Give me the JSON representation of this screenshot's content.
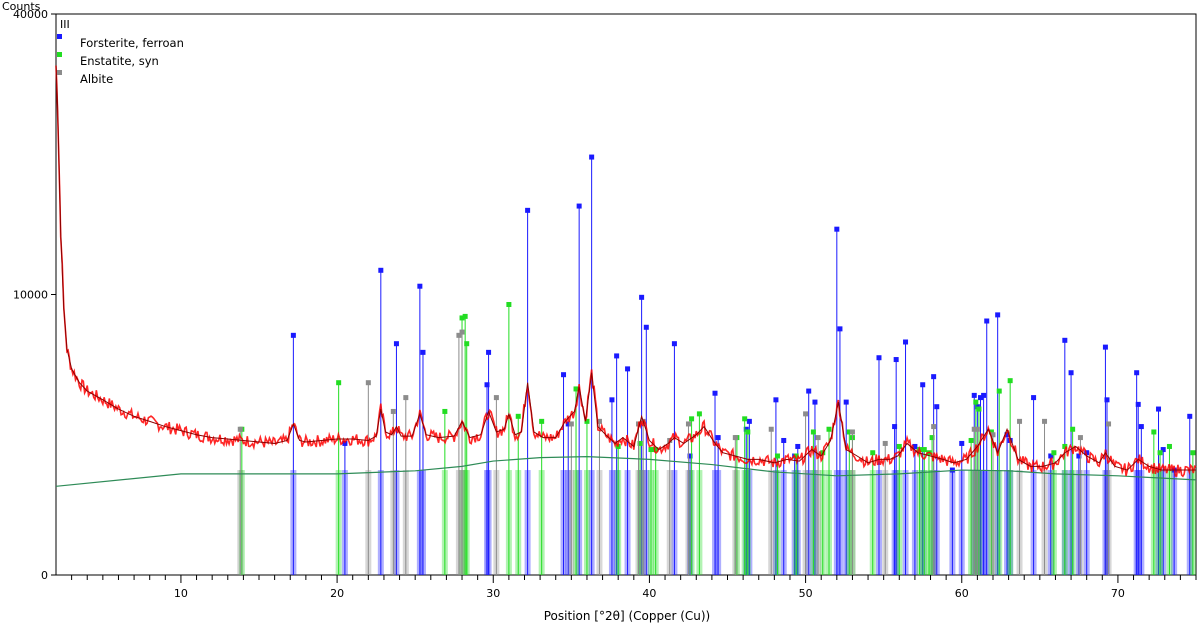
{
  "chart_data": {
    "type": "line",
    "ylabel": "Counts",
    "xlabel": "Position [°2θ] (Copper (Cu))",
    "xlim": [
      2,
      75
    ],
    "ylim": [
      0,
      40000
    ],
    "y_scale": "sqrt",
    "y_ticks": [
      0,
      10000,
      40000
    ],
    "y_tick_labels": [
      "0",
      "10000",
      "40000"
    ],
    "x_ticks": [
      10,
      20,
      30,
      40,
      50,
      60,
      70
    ],
    "grid": false,
    "legend_position": "top-left",
    "legend_marker": "III",
    "legend": [
      {
        "name": "Forsterite, ferroan",
        "color": "#1a1aff"
      },
      {
        "name": "Enstatite, syn",
        "color": "#22dd22"
      },
      {
        "name": "Albite",
        "color": "#8c8c8c"
      }
    ],
    "observed_color": "#ff0000",
    "fit_color": "#8b0000",
    "background_color": "#2e8b57",
    "background": {
      "x": [
        2,
        10,
        20,
        25,
        28,
        30,
        33,
        36,
        40,
        44,
        48,
        52,
        56,
        60,
        63,
        66,
        70,
        75
      ],
      "y": [
        1000,
        1300,
        1300,
        1380,
        1500,
        1650,
        1750,
        1780,
        1700,
        1550,
        1350,
        1250,
        1300,
        1400,
        1380,
        1300,
        1250,
        1150
      ]
    },
    "observed": {
      "x": [
        2.0,
        2.1,
        2.2,
        2.3,
        2.5,
        2.7,
        3.0,
        3.5,
        4,
        5,
        6,
        7,
        8,
        9,
        10,
        11,
        12,
        13,
        14,
        15,
        16,
        16.8,
        17.2,
        17.6,
        18,
        19,
        20,
        21,
        22,
        22.5,
        22.8,
        23.1,
        23.5,
        23.8,
        24.1,
        24.8,
        25.3,
        25.7,
        26.5,
        27.5,
        28.0,
        28.5,
        29.2,
        29.7,
        30.2,
        30.7,
        31.0,
        31.4,
        31.8,
        32.2,
        32.6,
        33.2,
        34,
        34.6,
        35.2,
        35.5,
        35.9,
        36.3,
        36.7,
        37.2,
        37.8,
        38.3,
        39.0,
        39.5,
        40.0,
        40.6,
        41.2,
        41.6,
        42.2,
        43.0,
        43.5,
        44.2,
        44.7,
        45.5,
        46.3,
        47.0,
        48.0,
        48.8,
        49.6,
        50.4,
        51.0,
        51.6,
        52.1,
        52.6,
        53.3,
        54.0,
        54.7,
        55.4,
        55.9,
        56.5,
        57.2,
        58.0,
        58.8,
        59.5,
        60.3,
        61.0,
        61.7,
        62.3,
        62.9,
        63.6,
        64.4,
        65.2,
        66.0,
        66.6,
        67.3,
        68.0,
        68.8,
        69.2,
        69.8,
        70.6,
        71.3,
        72.0,
        72.8,
        73.6,
        74.4,
        75.0
      ],
      "y": [
        33000,
        28000,
        21000,
        15000,
        9000,
        6500,
        5400,
        4700,
        4300,
        3900,
        3500,
        3200,
        3000,
        2800,
        2650,
        2500,
        2400,
        2350,
        2300,
        2250,
        2200,
        2300,
        2900,
        2300,
        2250,
        2300,
        2350,
        2350,
        2300,
        2450,
        3500,
        2600,
        2500,
        2800,
        2450,
        2450,
        3300,
        2500,
        2400,
        2450,
        3000,
        2400,
        2500,
        3400,
        2600,
        2700,
        3300,
        2500,
        2600,
        4700,
        2600,
        2400,
        2400,
        3000,
        3400,
        4500,
        3000,
        5200,
        2800,
        2500,
        2200,
        2400,
        2100,
        3200,
        2300,
        2000,
        2200,
        2400,
        2200,
        2500,
        2800,
        2200,
        1900,
        1800,
        1700,
        1700,
        1600,
        1700,
        1650,
        2000,
        1800,
        2300,
        3800,
        2000,
        1800,
        1600,
        1700,
        1700,
        1800,
        2200,
        1900,
        1800,
        1700,
        1600,
        1700,
        2100,
        2700,
        1900,
        2700,
        1700,
        1500,
        1500,
        1600,
        1900,
        2100,
        1800,
        1600,
        1900,
        1500,
        1400,
        1700,
        1500,
        1400,
        1400,
        1400,
        1400
      ]
    },
    "reference_series": [
      {
        "name": "Forsterite, ferroan",
        "color": "#1a1aff",
        "x": [
          17.2,
          20.5,
          22.8,
          23.8,
          25.3,
          25.5,
          29.6,
          29.7,
          32.2,
          34.5,
          34.8,
          35.5,
          36.3,
          37.6,
          37.9,
          38.6,
          39.5,
          39.8,
          41.6,
          42.6,
          44.2,
          44.4,
          46.2,
          46.4,
          48.1,
          48.6,
          49.3,
          49.5,
          50.2,
          50.6,
          52.0,
          52.2,
          52.6,
          54.7,
          55.7,
          55.8,
          56.4,
          57.0,
          57.5,
          58.2,
          58.4,
          59.4,
          60.0,
          60.8,
          61.0,
          61.2,
          61.4,
          61.6,
          62.3,
          62.9,
          63.1,
          64.6,
          65.7,
          66.6,
          67.0,
          67.5,
          68.0,
          69.2,
          69.3,
          71.2,
          71.3,
          71.5,
          72.6,
          72.9,
          73.6,
          74.6
        ],
        "y": [
          7300,
          2200,
          11800,
          6800,
          10600,
          6300,
          4600,
          6300,
          16900,
          5100,
          2900,
          17300,
          22200,
          3900,
          6100,
          5400,
          9800,
          7800,
          6800,
          1800,
          4200,
          2400,
          2700,
          3000,
          3900,
          2300,
          1800,
          2100,
          4300,
          3800,
          15200,
          7700,
          3800,
          6000,
          2800,
          5900,
          6900,
          2100,
          4600,
          5000,
          3600,
          1400,
          2200,
          4100,
          3600,
          4000,
          4100,
          8200,
          8600,
          2500,
          2300,
          4000,
          1800,
          7000,
          5200,
          1800,
          1900,
          6600,
          3900,
          5200,
          3700,
          2800,
          3500,
          2000,
          1400,
          3200
        ]
      },
      {
        "name": "Enstatite, syn",
        "color": "#22dd22",
        "x": [
          13.9,
          20.1,
          26.9,
          28.0,
          28.2,
          28.3,
          31.0,
          31.6,
          33.1,
          35.3,
          36.0,
          38.0,
          39.4,
          40.1,
          40.4,
          42.7,
          43.2,
          45.6,
          46.1,
          46.3,
          48.2,
          49.4,
          50.5,
          51.1,
          51.5,
          52.8,
          53.0,
          54.3,
          56.0,
          57.3,
          57.6,
          57.9,
          58.1,
          60.6,
          60.9,
          61.1,
          61.9,
          62.4,
          63.1,
          65.9,
          66.6,
          67.1,
          72.3,
          72.7,
          73.3,
          74.8
        ],
        "y": [
          2700,
          4700,
          3400,
          8400,
          8500,
          6800,
          9300,
          3200,
          3000,
          4400,
          3000,
          2100,
          2200,
          2000,
          2000,
          3100,
          3300,
          2400,
          3100,
          2600,
          1800,
          1800,
          2600,
          1900,
          2700,
          2600,
          2400,
          1900,
          2100,
          2000,
          2000,
          1900,
          2400,
          2300,
          3800,
          3500,
          2600,
          4300,
          4800,
          1900,
          2100,
          2700,
          2600,
          1900,
          2100,
          1900
        ]
      },
      {
        "name": "Albite",
        "color": "#8c8c8c",
        "x": [
          13.8,
          22.0,
          23.6,
          24.4,
          27.8,
          28.0,
          30.2,
          35.0,
          36.8,
          39.3,
          39.6,
          41.3,
          42.5,
          45.5,
          47.8,
          50.0,
          50.8,
          53.0,
          55.1,
          58.2,
          60.8,
          61.0,
          62.0,
          63.7,
          65.3,
          67.6,
          69.4
        ],
        "y": [
          2700,
          4700,
          3400,
          4000,
          7300,
          7500,
          4000,
          2900,
          3000,
          2900,
          3000,
          2300,
          2900,
          2400,
          2700,
          3300,
          2400,
          2600,
          2200,
          2800,
          2700,
          2700,
          2500,
          3000,
          3000,
          2400,
          2900
        ]
      }
    ]
  }
}
